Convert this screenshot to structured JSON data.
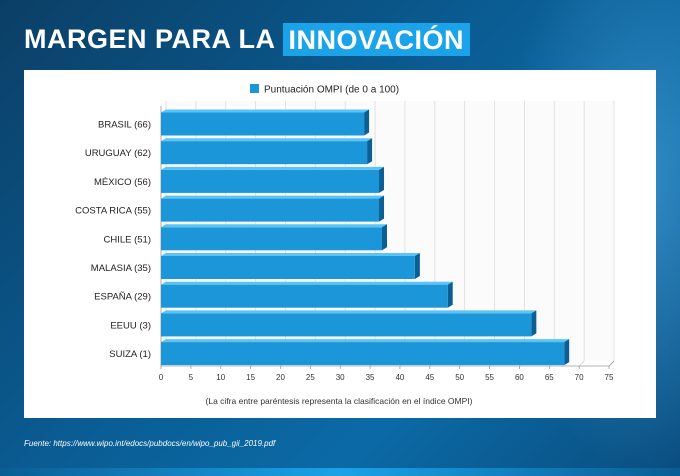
{
  "header": {
    "title_main": "MARGEN PARA LA",
    "title_highlight": "INNOVACIÓN"
  },
  "footer": {
    "source": "Fuente: https://www.wipo.int/edocs/pubdocs/en/wipo_pub_gii_2019.pdf"
  },
  "colors": {
    "bar_fill": "#1b96d8",
    "bar_top": "#5cc4f4",
    "bar_side": "#0b5f94",
    "highlight": "#1aa3e8"
  },
  "chart_data": {
    "type": "bar",
    "orientation": "horizontal",
    "title": "",
    "legend": [
      "Puntuación OMPI (de 0 a 100)"
    ],
    "legend_position": "top-center",
    "categories": [
      "BRASIL (66)",
      "URUGUAY (62)",
      "MÉXICO (56)",
      "COSTA RICA (55)",
      "CHILE (51)",
      "MALASIA (35)",
      "ESPAÑA (29)",
      "EEUU (3)",
      "SUIZA (1)"
    ],
    "values": [
      34.0,
      34.5,
      36.5,
      36.5,
      37.0,
      42.5,
      48.0,
      62.0,
      67.5
    ],
    "xlim": [
      0,
      75
    ],
    "xticks": [
      0,
      5,
      10,
      15,
      20,
      25,
      30,
      35,
      40,
      45,
      50,
      55,
      60,
      65,
      70,
      75
    ],
    "xlabel": "(La cifra entre paréntesis representa la clasificación en el índice OMPI)",
    "ylabel": "",
    "grid": true
  }
}
